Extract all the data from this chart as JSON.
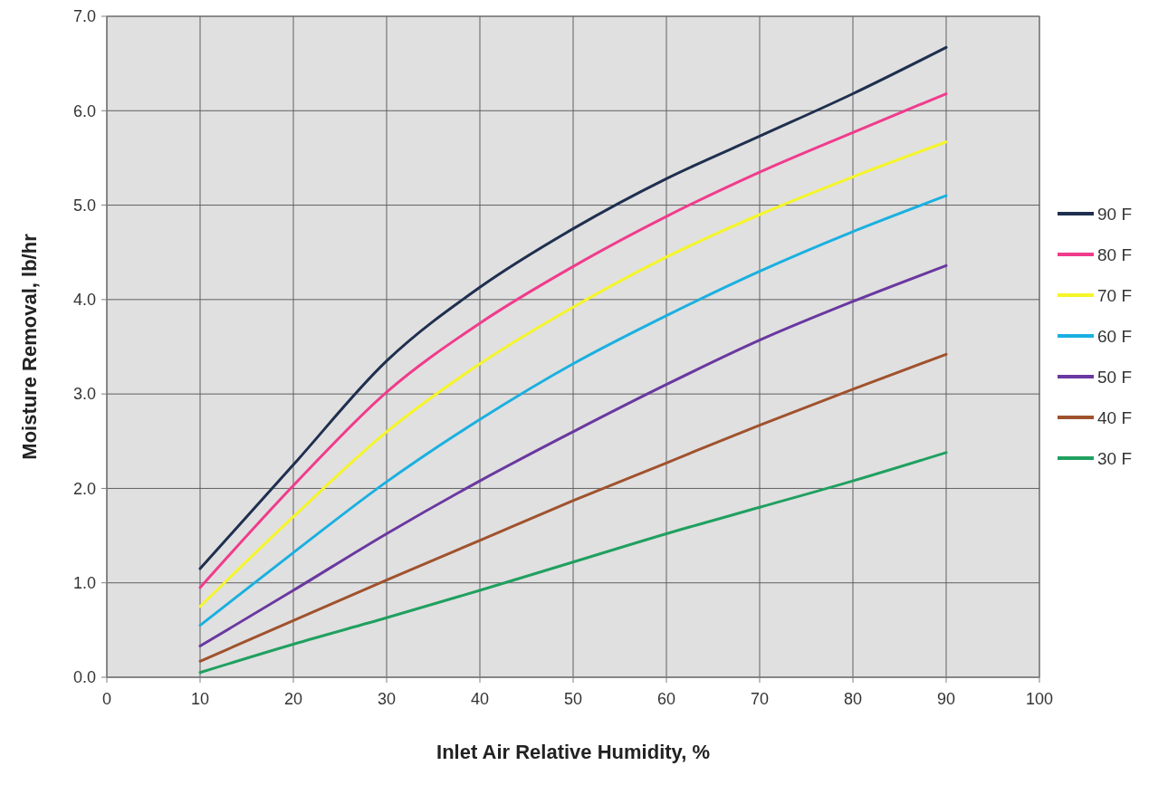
{
  "chart_data": {
    "type": "line",
    "xlabel": "Inlet Air Relative Humidity, %",
    "ylabel": "Moisture Removal, lb/hr",
    "x": [
      10,
      20,
      30,
      40,
      50,
      60,
      70,
      80,
      90
    ],
    "xlim": [
      0,
      100
    ],
    "xticks": [
      0,
      10,
      20,
      30,
      40,
      50,
      60,
      70,
      80,
      90,
      100
    ],
    "ylim": [
      0,
      7
    ],
    "yticks": [
      {
        "value": 0,
        "label": "0.0"
      },
      {
        "value": 1,
        "label": "1.0"
      },
      {
        "value": 2,
        "label": "2.0"
      },
      {
        "value": 3,
        "label": "3.0"
      },
      {
        "value": 4,
        "label": "4.0"
      },
      {
        "value": 5,
        "label": "5.0"
      },
      {
        "value": 6,
        "label": "6.0"
      },
      {
        "value": 7,
        "label": "7.0"
      }
    ],
    "grid": true,
    "legend": "right",
    "marker": "none",
    "line_style": "solid",
    "series": [
      {
        "name": "90 F",
        "color": "#1f2f4f",
        "values": [
          1.15,
          2.25,
          3.35,
          4.13,
          4.75,
          5.28,
          5.73,
          6.18,
          6.67
        ]
      },
      {
        "name": "80 F",
        "color": "#f03c8c",
        "values": [
          0.95,
          2.03,
          3.02,
          3.75,
          4.35,
          4.88,
          5.35,
          5.77,
          6.18
        ]
      },
      {
        "name": "70 F",
        "color": "#f5f52a",
        "values": [
          0.75,
          1.7,
          2.6,
          3.32,
          3.92,
          4.45,
          4.9,
          5.3,
          5.67
        ]
      },
      {
        "name": "60 F",
        "color": "#1ab0e0",
        "values": [
          0.55,
          1.32,
          2.07,
          2.73,
          3.32,
          3.83,
          4.3,
          4.72,
          5.1
        ]
      },
      {
        "name": "50 F",
        "color": "#6a38a0",
        "values": [
          0.33,
          0.92,
          1.52,
          2.08,
          2.6,
          3.1,
          3.57,
          3.98,
          4.36
        ]
      },
      {
        "name": "40 F",
        "color": "#a0522d",
        "values": [
          0.17,
          0.6,
          1.03,
          1.45,
          1.87,
          2.27,
          2.67,
          3.05,
          3.42
        ]
      },
      {
        "name": "30 F",
        "color": "#20a060",
        "values": [
          0.05,
          0.35,
          0.63,
          0.92,
          1.22,
          1.52,
          1.8,
          2.08,
          2.38
        ]
      }
    ]
  }
}
